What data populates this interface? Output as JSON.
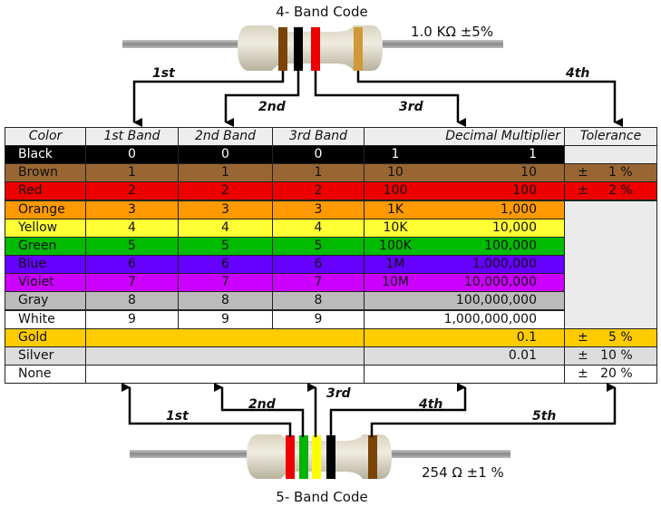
{
  "top": {
    "title": "4- Band Code",
    "value": "1.0 KΩ  ±5%",
    "bands": [
      "#7a4408",
      "#000000",
      "#ee0000",
      "#d09838"
    ],
    "labels": [
      "1st",
      "2nd",
      "3rd",
      "4th"
    ]
  },
  "bottom": {
    "title": "5- Band Code",
    "value": "254 Ω  ±1 %",
    "bands": [
      "#ee0000",
      "#00b400",
      "#ffff00",
      "#000000",
      "#7a4408"
    ],
    "labels": [
      "1st",
      "2nd",
      "3rd",
      "4th",
      "5th"
    ]
  },
  "table": {
    "headers": [
      "Color",
      "1st Band",
      "2nd Band",
      "3rd Band",
      "Decimal Multiplier",
      "Tolerance"
    ],
    "rows": [
      {
        "color": "Black",
        "b1": "0",
        "b2": "0",
        "b3": "0",
        "ms": "1",
        "m": "1",
        "tol": "",
        "bg": "#000000",
        "fg": "#ffffff"
      },
      {
        "color": "Brown",
        "b1": "1",
        "b2": "1",
        "b3": "1",
        "ms": "10",
        "m": "10",
        "tol": "±     1 %",
        "bg": "#996633",
        "fg": "#111111"
      },
      {
        "color": "Red",
        "b1": "2",
        "b2": "2",
        "b3": "2",
        "ms": "100",
        "m": "100",
        "tol": "±     2 %",
        "bg": "#ee0000",
        "fg": "#111111"
      },
      {
        "color": "Orange",
        "b1": "3",
        "b2": "3",
        "b3": "3",
        "ms": "1K",
        "m": "1,000",
        "tol": "",
        "bg": "#ff9900",
        "fg": "#111111"
      },
      {
        "color": "Yellow",
        "b1": "4",
        "b2": "4",
        "b3": "4",
        "ms": "10K",
        "m": "10,000",
        "tol": "",
        "bg": "#ffff33",
        "fg": "#111111"
      },
      {
        "color": "Green",
        "b1": "5",
        "b2": "5",
        "b3": "5",
        "ms": "100K",
        "m": "100,000",
        "tol": "",
        "bg": "#00bb00",
        "fg": "#111111"
      },
      {
        "color": "Blue",
        "b1": "6",
        "b2": "6",
        "b3": "6",
        "ms": "1M",
        "m": "1,000,000",
        "tol": "",
        "bg": "#6600ff",
        "fg": "#111111"
      },
      {
        "color": "Violet",
        "b1": "7",
        "b2": "7",
        "b3": "7",
        "ms": "10M",
        "m": "10,000,000",
        "tol": "",
        "bg": "#cc00ff",
        "fg": "#111111"
      },
      {
        "color": "Gray",
        "b1": "8",
        "b2": "8",
        "b3": "8",
        "ms": "",
        "m": "100,000,000",
        "tol": "",
        "bg": "#bbbbbb",
        "fg": "#111111"
      },
      {
        "color": "White",
        "b1": "9",
        "b2": "9",
        "b3": "9",
        "ms": "",
        "m": "1,000,000,000",
        "tol": "",
        "bg": "#ffffff",
        "fg": "#111111"
      },
      {
        "color": "Gold",
        "b1": "",
        "b2": "",
        "b3": "",
        "ms": "",
        "m": "0.1",
        "tol": "±     5 %",
        "bg": "#ffcc00",
        "fg": "#111111"
      },
      {
        "color": "Silver",
        "b1": "",
        "b2": "",
        "b3": "",
        "ms": "",
        "m": "0.01",
        "tol": "±   10 %",
        "bg": "#dddddd",
        "fg": "#111111"
      },
      {
        "color": "None",
        "b1": "",
        "b2": "",
        "b3": "",
        "ms": "",
        "m": "",
        "tol": "±   20 %",
        "bg": "#ffffff",
        "fg": "#111111"
      }
    ]
  }
}
